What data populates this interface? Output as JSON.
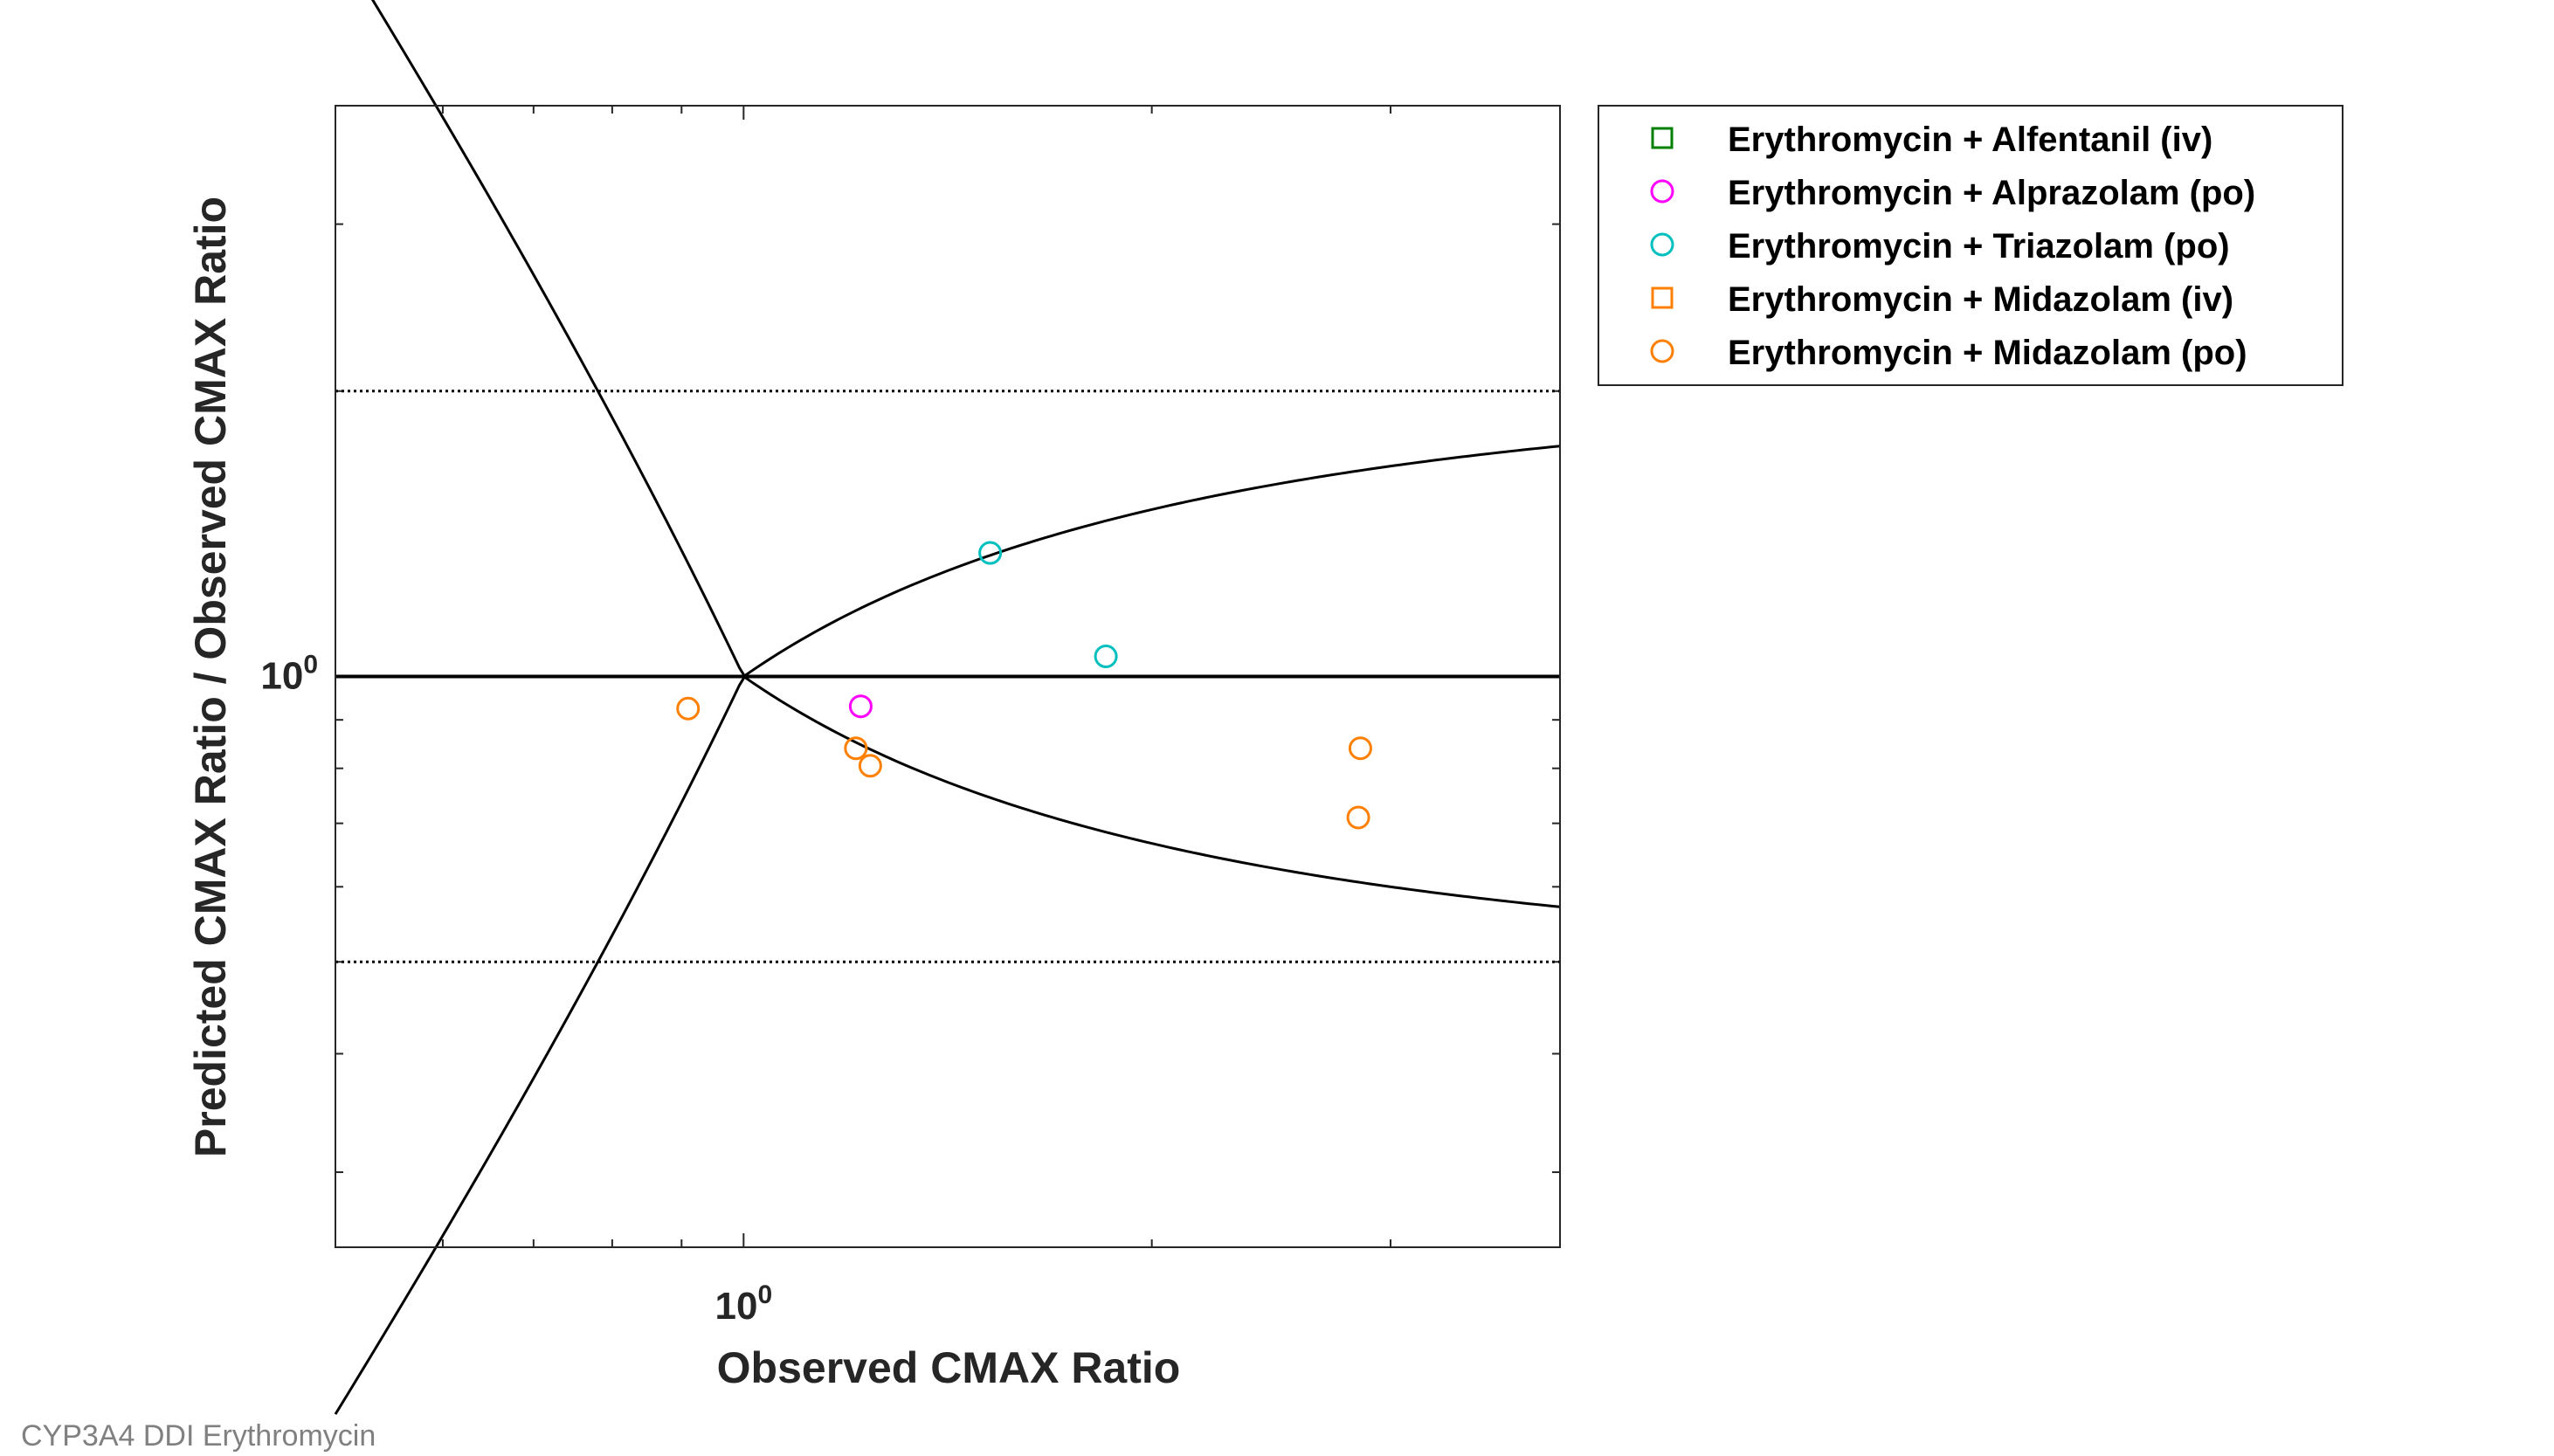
{
  "caption": "CYP3A4 DDI Erythromycin",
  "chart_data": {
    "type": "scatter",
    "x_scale": "log",
    "y_scale": "log",
    "xlabel": "Observed CMAX Ratio",
    "ylabel": "Predicted CMAX Ratio / Observed CMAX Ratio",
    "xlim": [
      0.5,
      4.0
    ],
    "ylim": [
      0.25,
      4.0
    ],
    "x_tick_labels": [
      {
        "base": "10",
        "exp": "0",
        "value": 1
      }
    ],
    "y_tick_labels": [
      {
        "base": "10",
        "exp": "0",
        "value": 1
      }
    ],
    "reference_lines": {
      "unity": 1,
      "dotted_limits": [
        0.5,
        2.0
      ],
      "guest_limit_delta": 1,
      "guest_limit_upper": "(d + 2(R-1))/R when R>=1, R/(d+2(1/R-1)) when R<1",
      "guest_limit_lower": "reciprocal of upper"
    },
    "legend_position": "outside-right",
    "series": [
      {
        "name": "Erythromycin + Alfentanil (iv)",
        "marker": "square",
        "color": "#007f00",
        "points": []
      },
      {
        "name": "Erythromycin + Alprazolam (po)",
        "marker": "circle",
        "color": "#ff00ff",
        "points": [
          {
            "x": 1.22,
            "y": 0.93
          }
        ]
      },
      {
        "name": "Erythromycin + Triazolam (po)",
        "marker": "circle",
        "color": "#00bfbf",
        "points": [
          {
            "x": 1.52,
            "y": 1.35
          },
          {
            "x": 1.85,
            "y": 1.05
          }
        ]
      },
      {
        "name": "Erythromycin + Midazolam (iv)",
        "marker": "square",
        "color": "#ff8000",
        "points": []
      },
      {
        "name": "Erythromycin + Midazolam (po)",
        "marker": "circle",
        "color": "#ff8000",
        "points": [
          {
            "x": 0.91,
            "y": 0.925
          },
          {
            "x": 1.21,
            "y": 0.84
          },
          {
            "x": 1.24,
            "y": 0.805
          },
          {
            "x": 2.85,
            "y": 0.84
          },
          {
            "x": 2.84,
            "y": 0.71
          }
        ]
      }
    ]
  }
}
